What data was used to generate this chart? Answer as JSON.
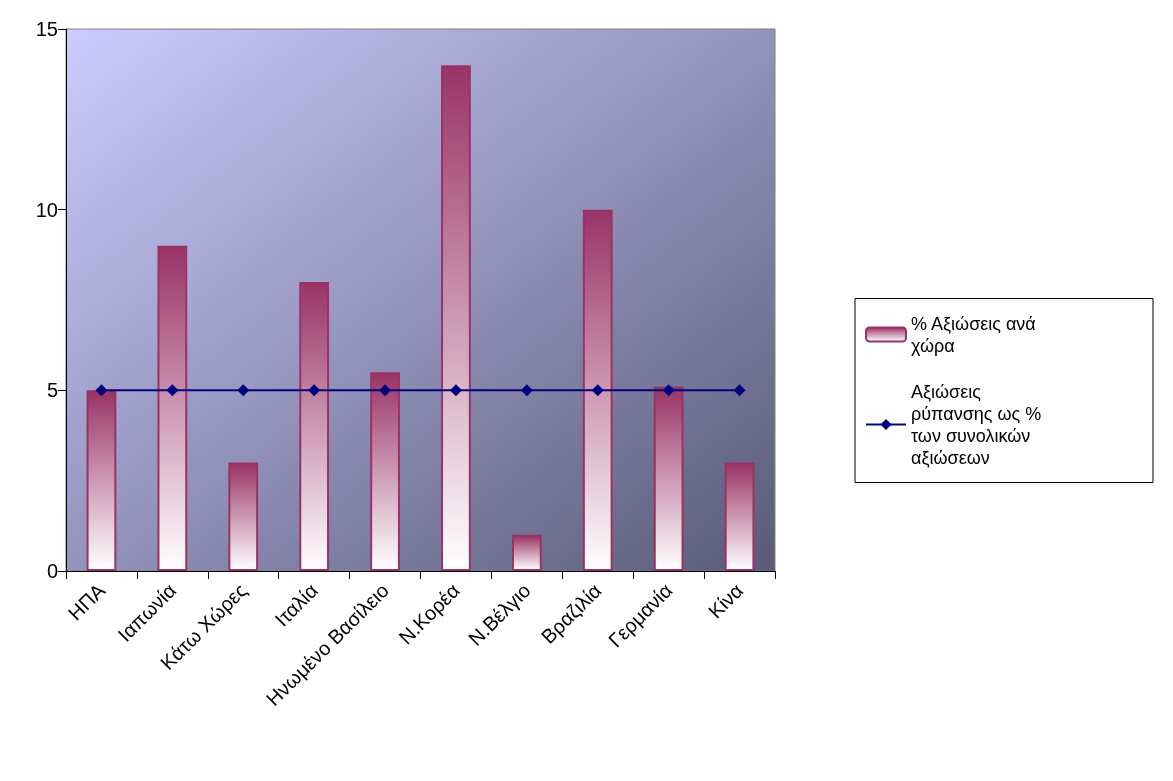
{
  "chart_data": {
    "type": "bar",
    "categories": [
      "ΗΠΑ",
      "Ιαπωνία",
      "Κάτω Χώρες",
      "Ιταλία",
      "Ηνωμένο Βασίλειο",
      "Ν.Κορέα",
      "Ν.Βέλγιο",
      "Βραζιλία",
      "Γερμανία",
      "Κίνα"
    ],
    "series": [
      {
        "name": "% Αξιώσεις ανά χώρα",
        "color": "#993366",
        "values": [
          5,
          9,
          3,
          8,
          5.5,
          14,
          1,
          10,
          5.1,
          3
        ]
      },
      {
        "name": "Αξιώσεις ρύπανσης ως % των συνολικών αξιώσεων",
        "type": "line",
        "color": "#000080",
        "marker": "diamond",
        "values": [
          5,
          5,
          5,
          5,
          5,
          5,
          5,
          5,
          5,
          5
        ]
      }
    ],
    "ylim": [
      0,
      15
    ],
    "yticks": [
      0,
      5,
      10,
      15
    ],
    "grid": false,
    "legend": "right"
  }
}
